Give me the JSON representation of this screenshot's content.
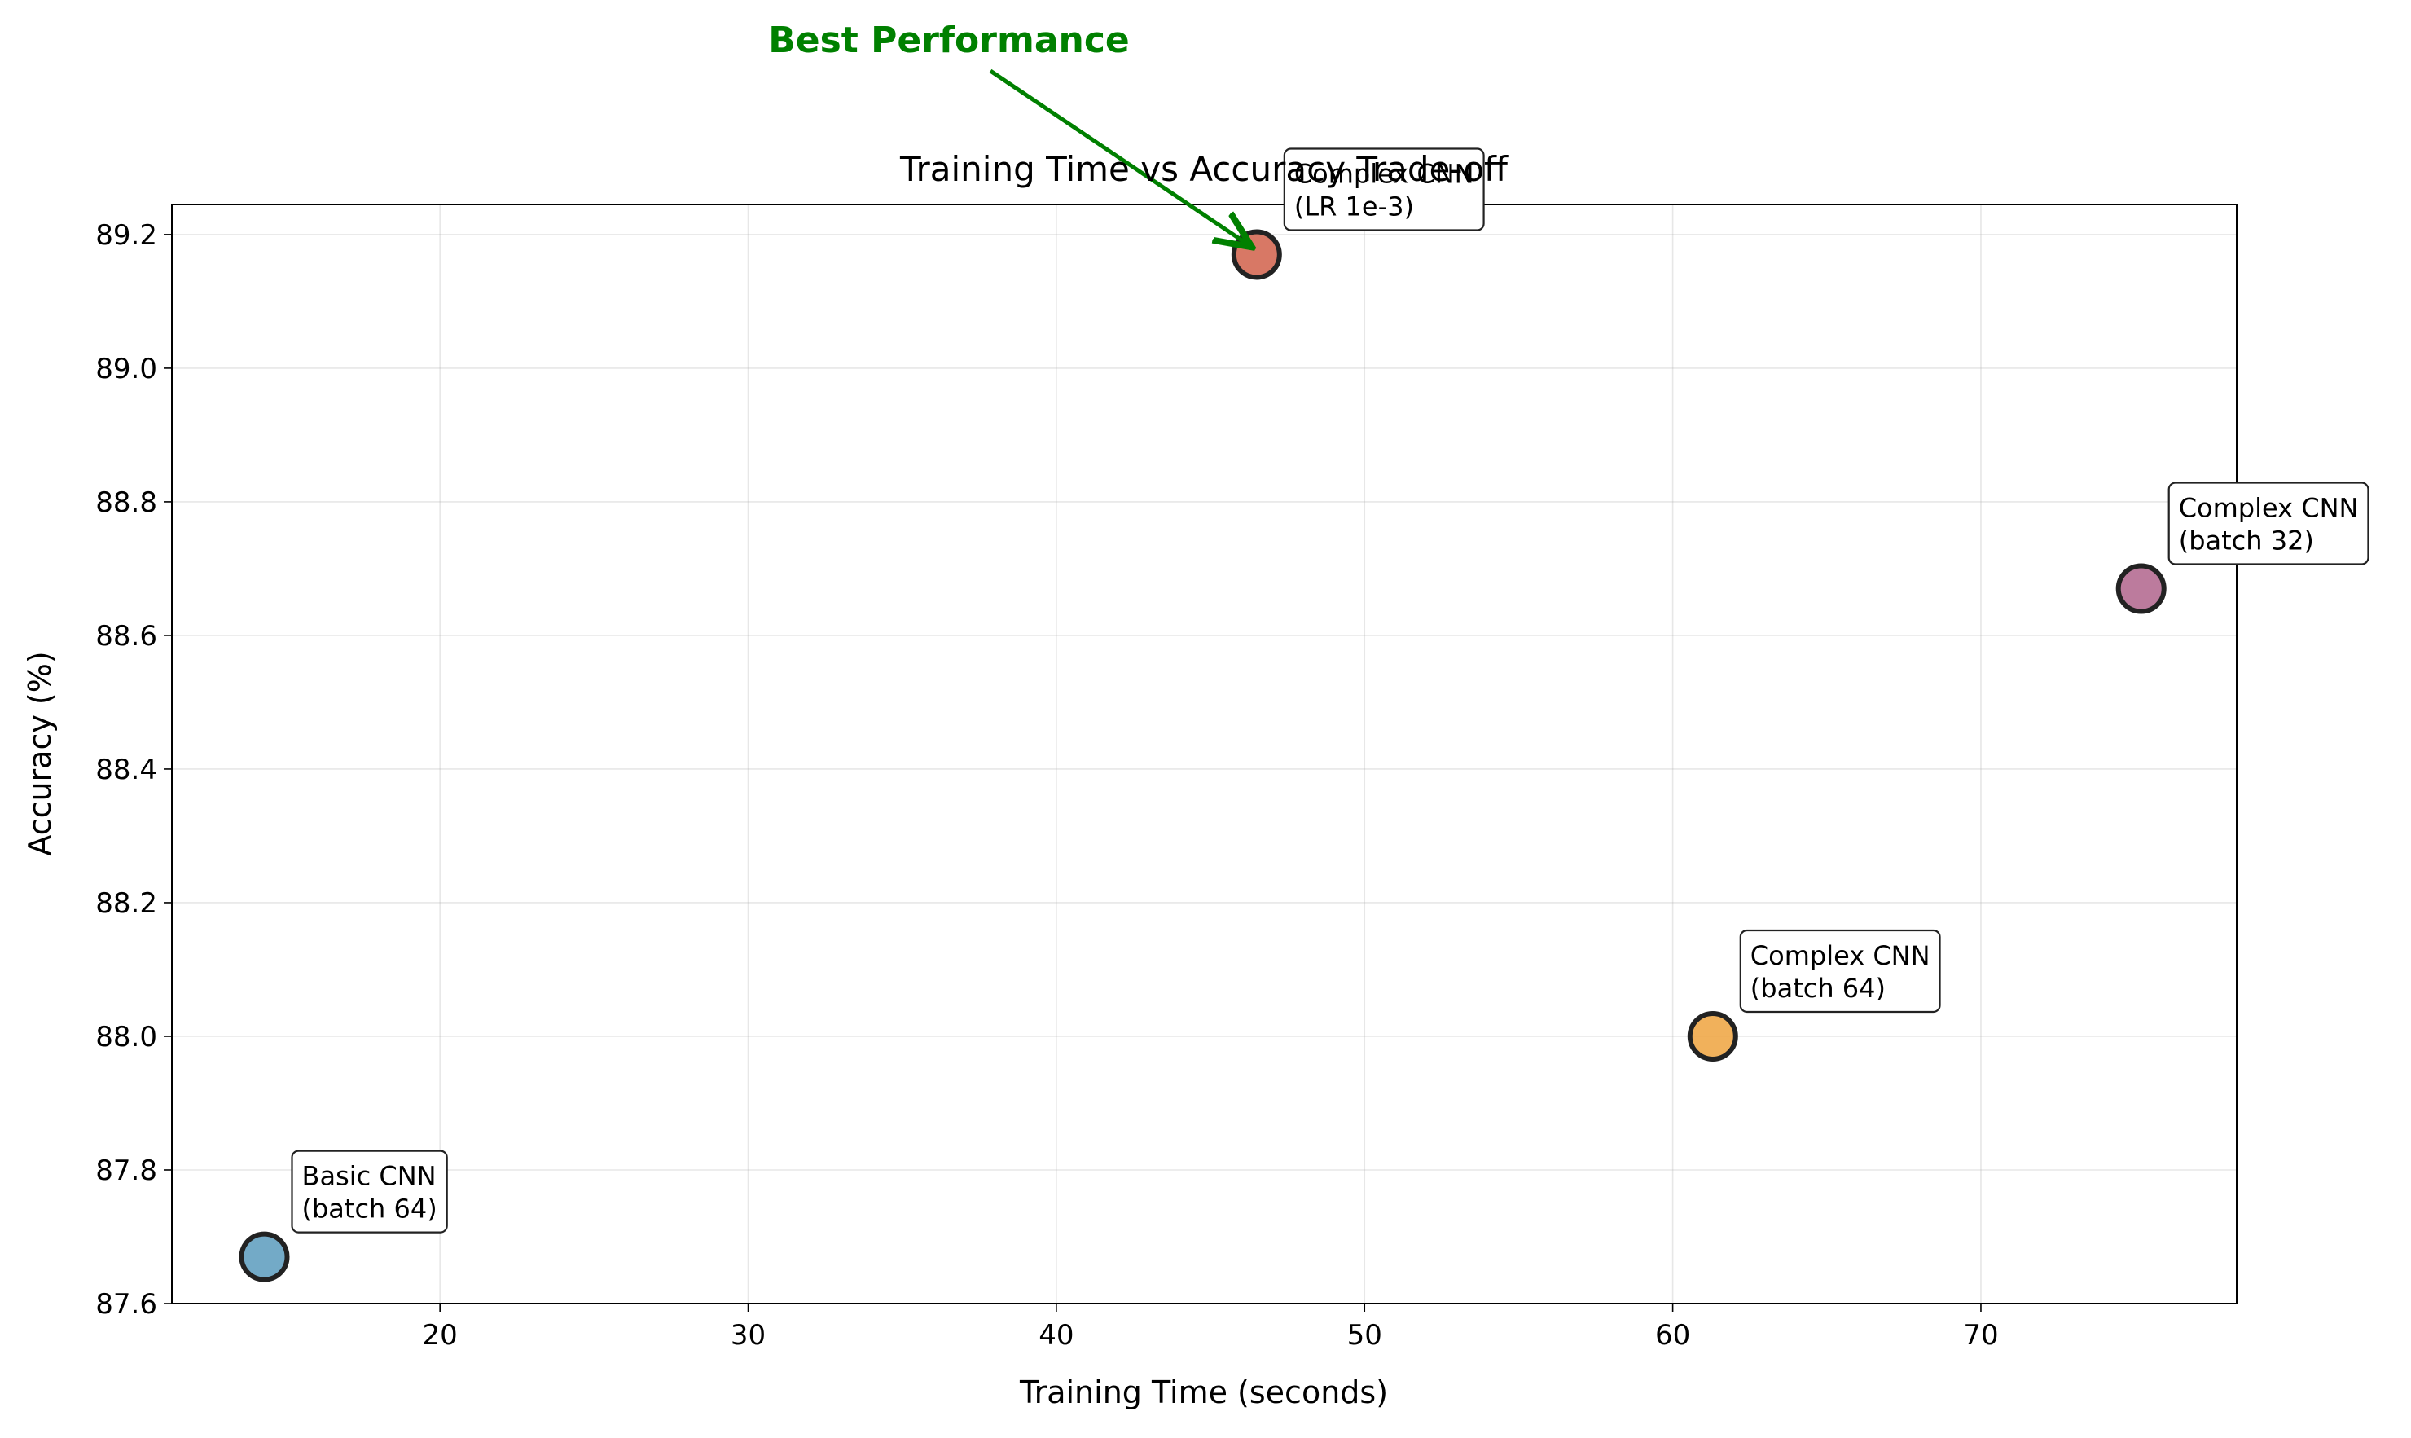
{
  "chart_data": {
    "type": "scatter",
    "title": "Training Time vs Accuracy Trade-off",
    "xlabel": "Training Time (seconds)",
    "ylabel": "Accuracy (%)",
    "xlim": [
      11.3,
      78.3
    ],
    "ylim": [
      87.6,
      89.245
    ],
    "xticks": [
      20,
      30,
      40,
      50,
      60,
      70
    ],
    "yticks": [
      87.6,
      87.8,
      88.0,
      88.2,
      88.4,
      88.6,
      88.8,
      89.0,
      89.2
    ],
    "grid": true,
    "points": [
      {
        "label": [
          "Basic CNN",
          "(batch 64)"
        ],
        "x": 14.3,
        "y": 87.67,
        "color": "#5b9bbd"
      },
      {
        "label": [
          "Complex CNN",
          "(LR 1e-3)"
        ],
        "x": 46.5,
        "y": 89.17,
        "color": "#d1604a"
      },
      {
        "label": [
          "Complex CNN",
          "(batch 64)"
        ],
        "x": 61.3,
        "y": 88.0,
        "color": "#efa33e"
      },
      {
        "label": [
          "Complex CNN",
          "(batch 32)"
        ],
        "x": 75.2,
        "y": 88.67,
        "color": "#b0648c"
      }
    ],
    "annotation": {
      "text": "Best Performance",
      "color": "#008000",
      "target_point": 1
    }
  }
}
